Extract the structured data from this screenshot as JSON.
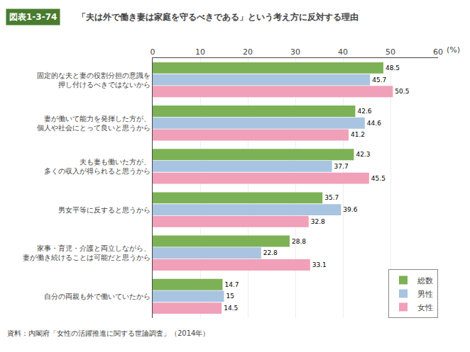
{
  "chart_data": {
    "type": "bar",
    "orientation": "horizontal",
    "title": "「夫は外で働き妻は家庭を守るべきである」という考え方に反対する理由",
    "categories": [
      "固定的な夫と妻の役割分担の意識を\n押し付けるべきではないから",
      "妻が働いて能力を発揮した方が、\n個人や社会にとって良いと思うから",
      "夫も妻も働いた方が、\n多くの収入が得られると思うから",
      "男女平等に反すると思うから",
      "家事・育児・介護と両立しながら、\n妻が働き続けることは可能だと思うから",
      "自分の両親も外で働いていたから"
    ],
    "series": [
      {
        "name": "総数",
        "color": "#7db155",
        "values": [
          48.5,
          42.6,
          42.3,
          35.7,
          28.8,
          14.7
        ]
      },
      {
        "name": "男性",
        "color": "#a8c4e0",
        "values": [
          45.7,
          44.6,
          37.7,
          39.6,
          22.8,
          15.0
        ]
      },
      {
        "name": "女性",
        "color": "#f0a0b8",
        "values": [
          50.5,
          41.2,
          45.5,
          32.8,
          33.1,
          14.5
        ]
      }
    ],
    "xlim": [
      0,
      60
    ],
    "xticks": [
      0,
      10,
      20,
      30,
      40,
      50,
      60
    ],
    "grid": true,
    "legend": "lower right",
    "data_labels": true,
    "annotations": [
      "図表1-3-74",
      "(%)",
      "資料：内閣府「女性の活躍推進に関する世論調査」（2014年）"
    ]
  }
}
